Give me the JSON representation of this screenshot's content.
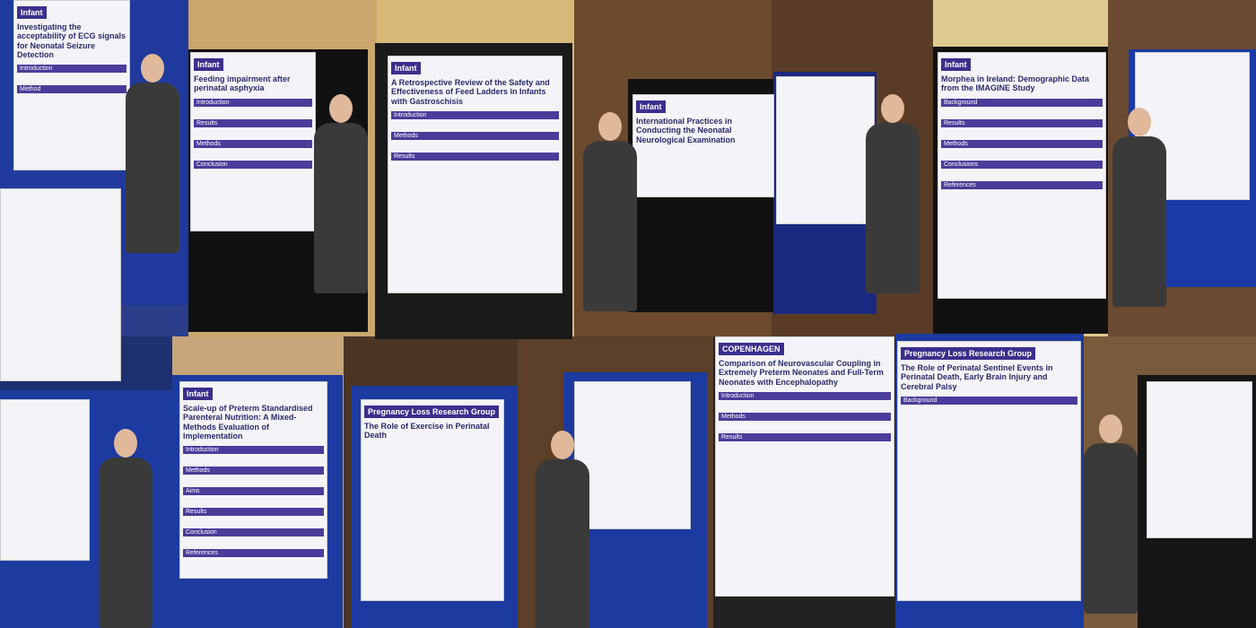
{
  "posters": [
    {
      "logo": "Infant",
      "title": "Investigating the acceptability of ECG signals for Neonatal Seizure Detection",
      "sections": [
        "Introduction",
        "Method"
      ]
    },
    {
      "logo": "Infant",
      "title": "Feeding impairment after perinatal asphyxia",
      "sections": [
        "Introduction",
        "Results",
        "Methods",
        "Conclusion"
      ]
    },
    {
      "logo": "Infant",
      "title": "A Retrospective Review of the Safety and Effectiveness of Feed Ladders in Infants with Gastroschisis",
      "sections": [
        "Introduction",
        "Methods",
        "Results"
      ]
    },
    {
      "logo": "Infant",
      "title": "International Practices in Conducting the Neonatal Neurological Examination",
      "sections": []
    },
    {
      "logo": "Infant",
      "title": "Morphea in Ireland: Demographic Data from the IMAGINE Study",
      "sections": [
        "Background",
        "Results",
        "Methods",
        "Conclusions",
        "References"
      ]
    },
    {
      "logo": "Infant",
      "title": "Scale-up of Preterm Standardised Parenteral Nutrition: A Mixed-Methods Evaluation of Implementation",
      "sections": [
        "Introduction",
        "Methods",
        "Aims",
        "Results",
        "Conclusion",
        "References"
      ]
    },
    {
      "logo": "Pregnancy Loss Research Group",
      "title": "The Role of Exercise in Perinatal Death",
      "sections": []
    },
    {
      "logo": "COPENHAGEN",
      "title": "Comparison of Neurovascular Coupling in Extremely Preterm Neonates and Full-Term Neonates with Encephalopathy",
      "sections": [
        "Introduction",
        "Methods",
        "Results"
      ]
    },
    {
      "logo": "Pregnancy Loss Research Group",
      "title": "The Role of Perinatal Sentinel Events in Perinatal Death, Early Brain Injury and Cerebral Palsy",
      "sections": [
        "Background"
      ]
    }
  ]
}
